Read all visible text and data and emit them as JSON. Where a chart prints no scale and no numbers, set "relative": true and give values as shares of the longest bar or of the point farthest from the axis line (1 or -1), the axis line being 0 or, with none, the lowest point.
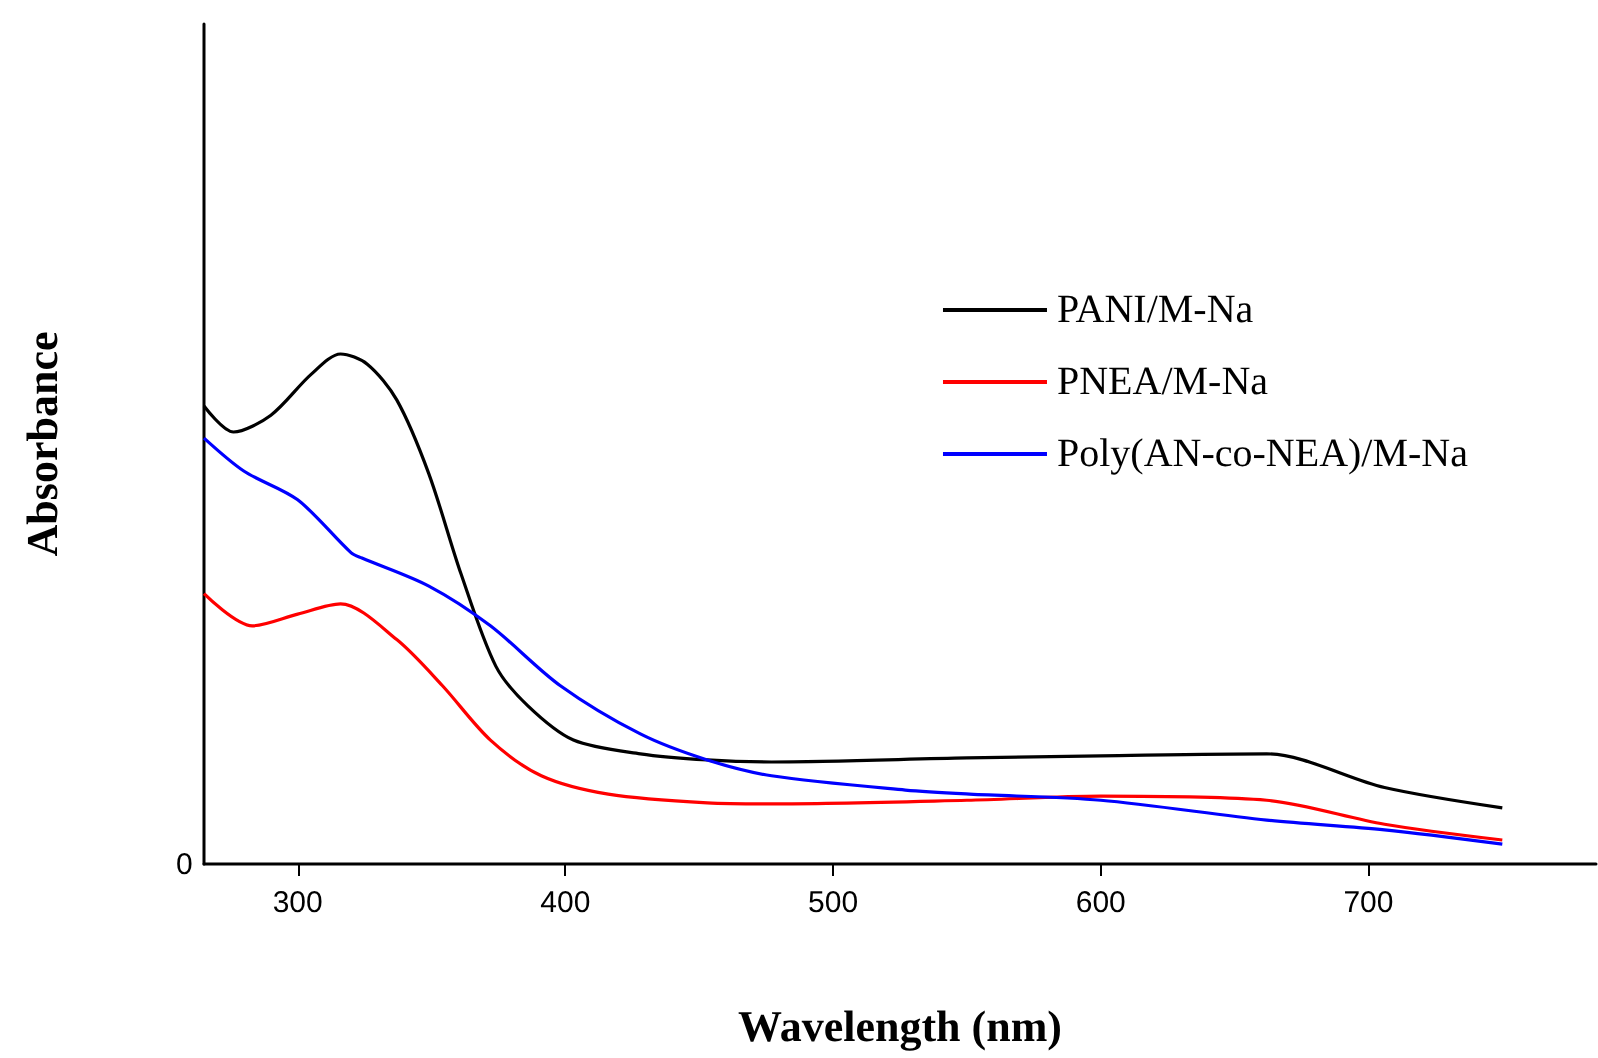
{
  "chart_data": {
    "type": "line",
    "xlabel": "Wavelength (nm)",
    "ylabel": "Absorbance",
    "relative": true,
    "xlim": [
      265,
      785
    ],
    "xticks": [
      300,
      400,
      500,
      600,
      700
    ],
    "legend": "top right",
    "grid": false,
    "marker": "none",
    "line_style": "solid",
    "annotations": [
      "0"
    ],
    "series": [
      {
        "name": "PANI/M-Na",
        "color": "#000000",
        "x": [
          265,
          276,
          290,
          305,
          316,
          326,
          337,
          349,
          361,
          374,
          386,
          403,
          428,
          453,
          477,
          550,
          600,
          662,
          706,
          750
        ],
        "values": [
          0.898,
          0.847,
          0.88,
          0.96,
          1.0,
          0.98,
          0.91,
          0.765,
          0.569,
          0.388,
          0.31,
          0.243,
          0.216,
          0.204,
          0.2,
          0.208,
          0.212,
          0.216,
          0.15,
          0.11
        ]
      },
      {
        "name": "PNEA/M-Na",
        "color": "#ff0000",
        "x": [
          265,
          283,
          300,
          316,
          337,
          354,
          372,
          391,
          416,
          453,
          477,
          550,
          600,
          662,
          706,
          750
        ],
        "values": [
          0.53,
          0.467,
          0.49,
          0.51,
          0.44,
          0.35,
          0.243,
          0.173,
          0.137,
          0.12,
          0.118,
          0.125,
          0.133,
          0.125,
          0.078,
          0.047
        ]
      },
      {
        "name": "Poly(AN-co-NEA)/M-Na",
        "color": "#0000ff",
        "x": [
          265,
          280,
          300,
          320,
          324,
          349,
          372,
          398,
          428,
          453,
          477,
          527,
          551,
          600,
          662,
          706,
          750
        ],
        "values": [
          0.835,
          0.77,
          0.714,
          0.61,
          0.6,
          0.545,
          0.467,
          0.35,
          0.255,
          0.204,
          0.173,
          0.145,
          0.137,
          0.125,
          0.086,
          0.067,
          0.039
        ]
      }
    ]
  }
}
